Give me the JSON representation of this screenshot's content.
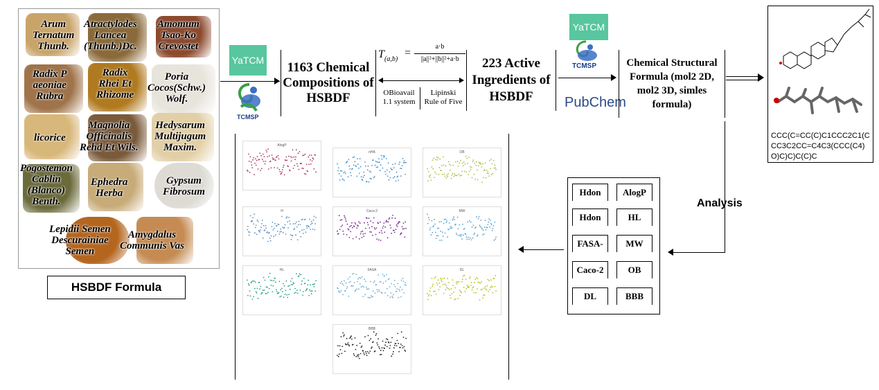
{
  "herbs": [
    {
      "label": "Arum\nTernatum\nThunb.",
      "color": "#c9a46a"
    },
    {
      "label": "Atractylodes\nLancea\n(Thunb.)Dc.",
      "color": "#8a6a3a"
    },
    {
      "label": "Amomum\nTsao-Ko\nCrevostet",
      "color": "#8c4a2e"
    },
    {
      "label": "Radix P\naeoniae\nRubra",
      "color": "#a0744a"
    },
    {
      "label": "Radix\nRhei Et\nRhizome",
      "color": "#b07a20"
    },
    {
      "label": "Poria\nCocos(Schw.)\nWolf.",
      "color": "#e7e4dc"
    },
    {
      "label": "licorice",
      "color": "#d8b77a"
    },
    {
      "label": "Magnolia\nOfficinalis\nRehd Et Wils.",
      "color": "#7a5a3a"
    },
    {
      "label": "Hedysarum\nMultijugum\nMaxim.",
      "color": "#e2cfa6"
    },
    {
      "label": "Pogostemon\nCablin\n(Blanco)\nBenth.",
      "color": "#6b6a3a"
    },
    {
      "label": "Ephedra\nHerba",
      "color": "#c7ab78"
    },
    {
      "label": "Gypsum\nFibrosum",
      "color": "#dedbd5"
    },
    {
      "label": "Lepidii Semen\nDescurainiae\nSemen",
      "color": "#b4661f"
    },
    {
      "label": "Amygdalus\nCommunis Vas",
      "color": "#c58b52"
    }
  ],
  "formula_label": "HSBDF Formula",
  "databases": {
    "yatcm": "YaTCM",
    "tcmsp": "TCMSP",
    "pubchem": "PubChem"
  },
  "compositions_box": "1163 Chemical Compositions of HSBDF",
  "similarity": {
    "lhs": "T",
    "subscript": "(a,b)",
    "numerator": "a·b",
    "denominator": "||a||²+||b||²+a·b",
    "filter_left": "OBioavail 1.1 system",
    "filter_right": "Lipinski Rule of Five"
  },
  "active_box": "223 Active Ingredients of HSBDF",
  "structural_box": "Chemical Structural Formula (mol2 2D, mol2 3D, simles formula)",
  "smiles": "CCC(C=CC(C)C1CCC2C1(CCC3C2CC=C4C3(CCC(C4)O)C)C)C(C)C",
  "analysis_label": "Analysis",
  "properties": [
    [
      "Hdon",
      "AlogP"
    ],
    [
      "Hdon",
      "HL"
    ],
    [
      "FASA-",
      "MW"
    ],
    [
      "Caco-2",
      "OB"
    ],
    [
      "DL",
      "BBB"
    ]
  ],
  "scatter_titles": [
    "AlogP",
    "nHA",
    "OB",
    "H",
    "Caco-2",
    "MW",
    "HL",
    "FASA",
    "DL",
    "BBB"
  ],
  "scatter_colors": [
    "#b03a5b",
    "#4a90c8",
    "#a8c04a",
    "#5a8fbf",
    "#7a2a8c",
    "#5aa0d0",
    "#2aa08a",
    "#6aaed6",
    "#b8c020",
    "#222222"
  ]
}
